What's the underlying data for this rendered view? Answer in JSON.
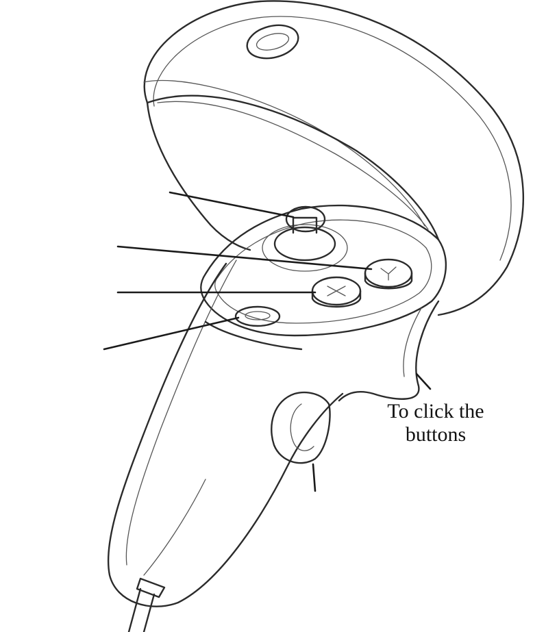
{
  "annotation": {
    "line1": "To click the",
    "line2": "buttons"
  },
  "colors": {
    "outline": "#2b2b2b",
    "leader": "#1a1a1a",
    "background": "#ffffff"
  },
  "icons": [
    "vr-controller-icon",
    "thumbstick-icon",
    "button-y-icon",
    "button-x-icon",
    "menu-button-icon",
    "grip-button-icon",
    "trigger-button-icon"
  ]
}
